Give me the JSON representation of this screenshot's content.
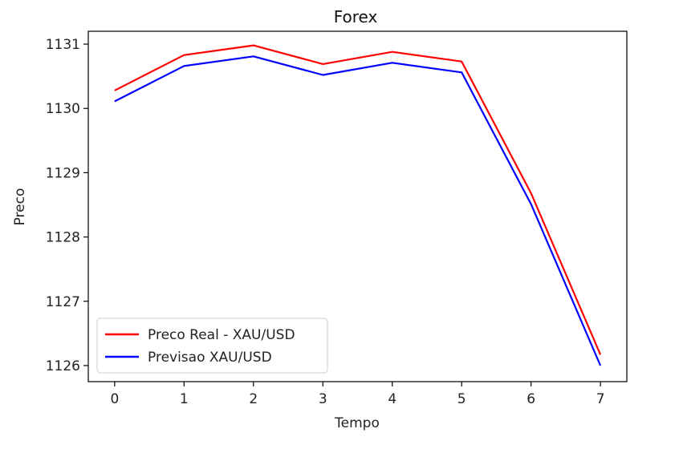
{
  "chart_data": {
    "type": "line",
    "title": "Forex",
    "xlabel": "Tempo",
    "ylabel": "Preco",
    "x": [
      0,
      1,
      2,
      3,
      4,
      5,
      6,
      7
    ],
    "xlim": [
      -0.38,
      7.38
    ],
    "ylim": [
      1125.75,
      1131.2
    ],
    "xticks": [
      0,
      1,
      2,
      3,
      4,
      5,
      6,
      7
    ],
    "yticks": [
      1126,
      1127,
      1128,
      1129,
      1130,
      1131
    ],
    "grid": false,
    "legend_position": "lower-left",
    "series": [
      {
        "name": "Preco Real - XAU/USD",
        "color": "#ff0000",
        "values": [
          1130.28,
          1130.83,
          1130.98,
          1130.69,
          1130.88,
          1130.73,
          1128.68,
          1126.17
        ]
      },
      {
        "name": "Previsao XAU/USD",
        "color": "#0000ff",
        "values": [
          1130.11,
          1130.66,
          1130.81,
          1130.52,
          1130.71,
          1130.56,
          1128.51,
          1126.0
        ]
      }
    ]
  }
}
